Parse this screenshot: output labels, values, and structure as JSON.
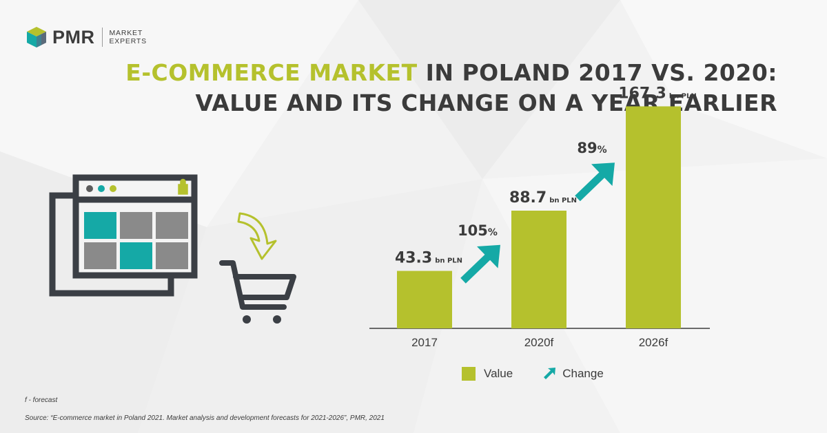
{
  "logo": {
    "name": "PMR",
    "sub_line1": "MARKET",
    "sub_line2": "EXPERTS"
  },
  "title": {
    "highlight": "E-COMMERCE MARKET",
    "rest_line1": " IN POLAND 2017 VS. 2020:",
    "line2": "VALUE AND ITS CHANGE ON A YEAR EARLIER"
  },
  "colors": {
    "bar": "#b5c12d",
    "arrow": "#15a9a6",
    "text": "#3b3b3b"
  },
  "chart_data": {
    "type": "bar",
    "categories": [
      "2017",
      "2020f",
      "2026f"
    ],
    "series": [
      {
        "name": "Value",
        "values": [
          43.3,
          88.7,
          167.3
        ]
      }
    ],
    "unit": "bn PLN",
    "value_labels": [
      "43.3",
      "88.7",
      "167.3"
    ],
    "changes": [
      {
        "label": "105",
        "unit": "%",
        "value": 105
      },
      {
        "label": "89",
        "unit": "%",
        "value": 89
      }
    ],
    "legend": [
      "Value",
      "Change"
    ],
    "ylim": [
      0,
      180
    ],
    "grid": false
  },
  "footnotes": {
    "forecast": "f - forecast",
    "source": "Source: “E-commerce market in Poland 2021. Market analysis and development forecasts for 2021-2026”, PMR, 2021"
  }
}
